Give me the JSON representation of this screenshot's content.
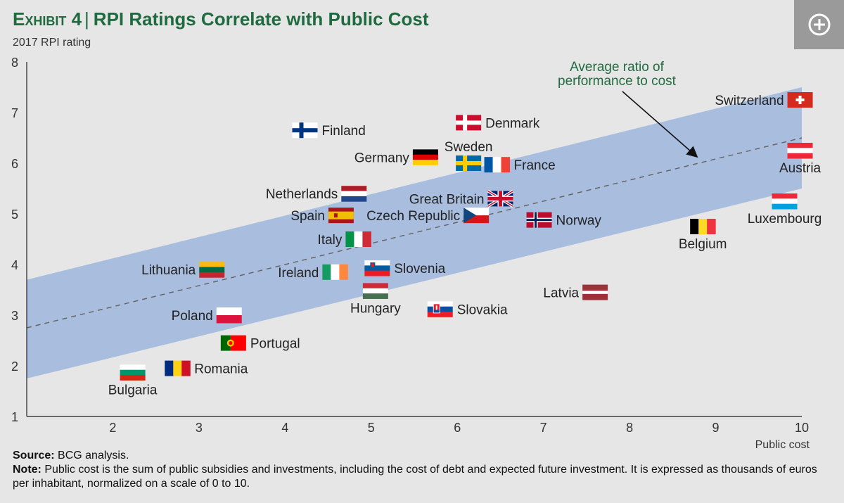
{
  "header": {
    "exhibit": "Exhibit 4",
    "separator": "|",
    "title": "RPI Ratings Correlate with Public Cost",
    "expand_icon": "plus-circle-icon"
  },
  "footer": {
    "source_label": "Source:",
    "source_text": "BCG analysis.",
    "note_label": "Note:",
    "note_text": "Public cost is the sum of public subsidies and investments, including the cost of debt and expected future investment. It is expressed as thousands of euros per inhabitant, normalized on a scale of 0 to 10."
  },
  "chart_data": {
    "type": "scatter",
    "title": "RPI Ratings Correlate with Public Cost",
    "xlabel": "Public cost",
    "ylabel": "2017 RPI rating",
    "xlim": [
      1,
      10
    ],
    "ylim": [
      1,
      8
    ],
    "xticks": [
      2,
      3,
      4,
      5,
      6,
      7,
      8,
      9,
      10
    ],
    "yticks": [
      1,
      2,
      3,
      4,
      5,
      6,
      7,
      8
    ],
    "band": {
      "label": "Average ratio of performance to cost",
      "center_line": [
        [
          1,
          2.75
        ],
        [
          10,
          6.5
        ]
      ],
      "upper": [
        [
          1,
          3.7
        ],
        [
          10,
          7.5
        ]
      ],
      "lower": [
        [
          1,
          1.75
        ],
        [
          10,
          5.5
        ]
      ],
      "color": "#a9bedf",
      "line_color": "#666666"
    },
    "annotation": {
      "line1": "Average ratio of",
      "line2": "performance to cost",
      "color": "#1f6b3f"
    },
    "points": [
      {
        "country": "Switzerland",
        "flag": "switzerland",
        "x": 9.98,
        "y": 7.25,
        "label_pos": "left"
      },
      {
        "country": "Austria",
        "flag": "austria",
        "x": 9.98,
        "y": 6.25,
        "label_pos": "below"
      },
      {
        "country": "Luxembourg",
        "flag": "luxembourg",
        "x": 9.8,
        "y": 5.25,
        "label_pos": "below"
      },
      {
        "country": "Belgium",
        "flag": "belgium",
        "x": 8.85,
        "y": 4.75,
        "label_pos": "below"
      },
      {
        "country": "Denmark",
        "flag": "denmark",
        "x": 6.13,
        "y": 6.8,
        "label_pos": "right"
      },
      {
        "country": "Finland",
        "flag": "finland",
        "x": 4.23,
        "y": 6.65,
        "label_pos": "right"
      },
      {
        "country": "Germany",
        "flag": "germany",
        "x": 5.63,
        "y": 6.12,
        "label_pos": "left"
      },
      {
        "country": "Sweden",
        "flag": "sweden",
        "x": 6.13,
        "y": 6.0,
        "label_pos": "above"
      },
      {
        "country": "France",
        "flag": "france",
        "x": 6.46,
        "y": 5.97,
        "label_pos": "right"
      },
      {
        "country": "Netherlands",
        "flag": "netherlands",
        "x": 4.8,
        "y": 5.4,
        "label_pos": "left"
      },
      {
        "country": "Great Britain",
        "flag": "uk",
        "x": 6.5,
        "y": 5.3,
        "label_pos": "left"
      },
      {
        "country": "Spain",
        "flag": "spain",
        "x": 4.65,
        "y": 4.97,
        "label_pos": "left"
      },
      {
        "country": "Czech Republic",
        "flag": "czech",
        "x": 6.22,
        "y": 4.97,
        "label_pos": "left"
      },
      {
        "country": "Norway",
        "flag": "norway",
        "x": 6.95,
        "y": 4.88,
        "label_pos": "right"
      },
      {
        "country": "Italy",
        "flag": "italy",
        "x": 4.85,
        "y": 4.5,
        "label_pos": "left"
      },
      {
        "country": "Lithuania",
        "flag": "lithuania",
        "x": 3.15,
        "y": 3.9,
        "label_pos": "left"
      },
      {
        "country": "Ireland",
        "flag": "ireland",
        "x": 4.58,
        "y": 3.85,
        "label_pos": "left"
      },
      {
        "country": "Slovenia",
        "flag": "slovenia",
        "x": 5.07,
        "y": 3.93,
        "label_pos": "right"
      },
      {
        "country": "Hungary",
        "flag": "hungary",
        "x": 5.05,
        "y": 3.48,
        "label_pos": "below"
      },
      {
        "country": "Latvia",
        "flag": "latvia",
        "x": 7.6,
        "y": 3.45,
        "label_pos": "left"
      },
      {
        "country": "Slovakia",
        "flag": "slovakia",
        "x": 5.8,
        "y": 3.12,
        "label_pos": "right"
      },
      {
        "country": "Poland",
        "flag": "poland",
        "x": 3.35,
        "y": 3.0,
        "label_pos": "left"
      },
      {
        "country": "Portugal",
        "flag": "portugal",
        "x": 3.4,
        "y": 2.45,
        "label_pos": "right"
      },
      {
        "country": "Romania",
        "flag": "romania",
        "x": 2.75,
        "y": 1.95,
        "label_pos": "right"
      },
      {
        "country": "Bulgaria",
        "flag": "bulgaria",
        "x": 2.23,
        "y": 1.87,
        "label_pos": "below"
      }
    ]
  }
}
